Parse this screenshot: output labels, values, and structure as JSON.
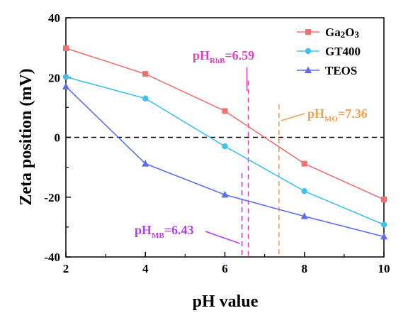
{
  "chart_data": {
    "type": "line",
    "xlabel": "pH value",
    "ylabel": "Zeta position (mV)",
    "xlim": [
      2,
      10
    ],
    "ylim": [
      -40,
      40
    ],
    "x_ticks": [
      "2",
      "4",
      "6",
      "8",
      "10"
    ],
    "y_ticks": [
      "-40",
      "-20",
      "0",
      "20",
      "40"
    ],
    "grid": false,
    "legend_position": "top-right",
    "series": [
      {
        "name": "Ga2O3",
        "color": "#f07070",
        "marker": "square",
        "x": [
          2,
          4,
          6,
          8,
          10
        ],
        "y": [
          29.8,
          21.2,
          8.8,
          -8.8,
          -20.8
        ]
      },
      {
        "name": "GT400",
        "color": "#40c0f0",
        "marker": "circle",
        "x": [
          2,
          4,
          6,
          8,
          10
        ],
        "y": [
          20.2,
          13.0,
          -3.0,
          -18.0,
          -29.2
        ]
      },
      {
        "name": "TEOS",
        "color": "#5a6ef0",
        "marker": "triangle",
        "x": [
          2,
          4,
          6,
          8,
          10
        ],
        "y": [
          17.0,
          -8.8,
          -19.2,
          -26.4,
          -33.2
        ]
      }
    ],
    "reference_lines": [
      {
        "orientation": "horizontal",
        "y": 0,
        "color": "#000000",
        "style": "dashed"
      },
      {
        "orientation": "vertical",
        "x": 6.43,
        "color": "#b040f0",
        "style": "dashed"
      },
      {
        "orientation": "vertical",
        "x": 6.59,
        "color": "#e040c0",
        "style": "dashed"
      },
      {
        "orientation": "vertical",
        "x": 7.36,
        "color": "#f0a050",
        "style": "dashed"
      }
    ],
    "annotations": [
      {
        "id": "rhb",
        "main": "pH",
        "sub": "RhB",
        "value": "=6.59",
        "color": "#e040c0",
        "x_ref": 6.59
      },
      {
        "id": "mo",
        "main": "pH",
        "sub": "MO",
        "value": "=7.36",
        "color": "#f0a050",
        "x_ref": 7.36
      },
      {
        "id": "mb",
        "main": "pH",
        "sub": "MB",
        "value": "=6.43",
        "color": "#b040f0",
        "x_ref": 6.43
      }
    ]
  }
}
